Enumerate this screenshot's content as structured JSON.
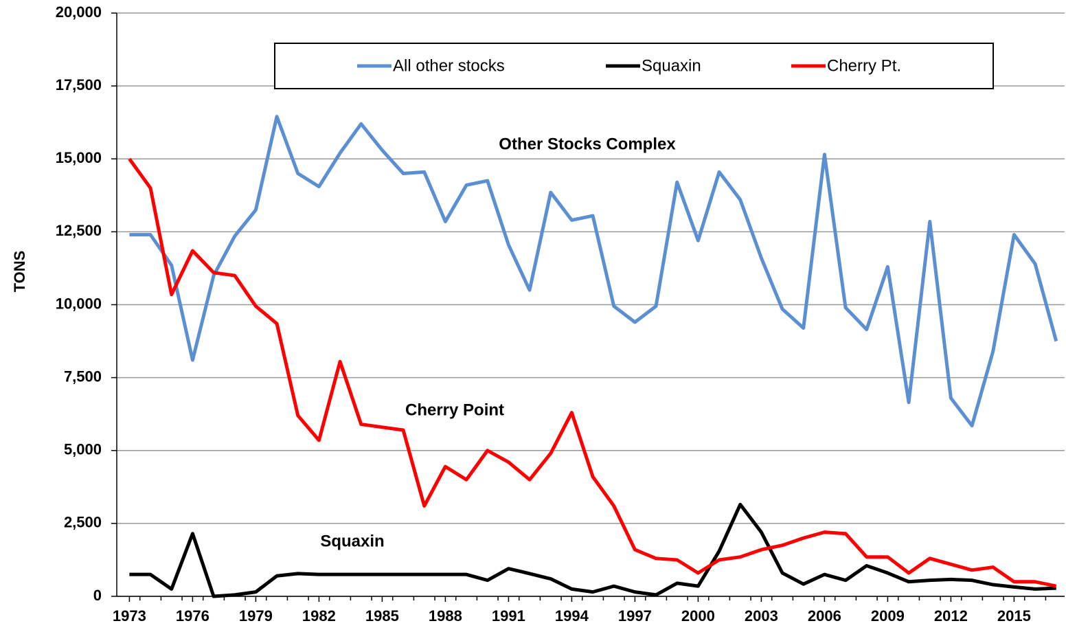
{
  "chart_data": {
    "type": "line",
    "y_label": "TONS",
    "annotations": [
      "Other Stocks Complex",
      "Cherry Point",
      "Squaxin"
    ],
    "x": [
      1973,
      1974,
      1975,
      1976,
      1977,
      1978,
      1979,
      1980,
      1981,
      1982,
      1983,
      1984,
      1985,
      1986,
      1987,
      1988,
      1989,
      1990,
      1991,
      1992,
      1993,
      1994,
      1995,
      1996,
      1997,
      1998,
      1999,
      2000,
      2001,
      2002,
      2003,
      2004,
      2005,
      2006,
      2007,
      2008,
      2009,
      2010,
      2011,
      2012,
      2013,
      2014,
      2015,
      2016,
      2017
    ],
    "series": [
      {
        "name": "All other stocks",
        "color": "#5b8fd4",
        "values": [
          12400,
          12400,
          11350,
          8100,
          11000,
          12350,
          13250,
          16450,
          14500,
          14050,
          15200,
          16200,
          15300,
          14500,
          14550,
          12850,
          14100,
          14250,
          12050,
          10500,
          13850,
          12900,
          13050,
          9950,
          9400,
          9950,
          14200,
          12200,
          14550,
          13600,
          11600,
          9850,
          9200,
          15150,
          9900,
          9150,
          11300,
          6650,
          12850,
          6800,
          5850,
          8400,
          12400,
          11400,
          8750
        ]
      },
      {
        "name": "Squaxin",
        "color": "#000000",
        "values": [
          750,
          750,
          250,
          2150,
          0,
          50,
          150,
          700,
          780,
          750,
          750,
          750,
          750,
          750,
          750,
          750,
          750,
          550,
          950,
          780,
          600,
          250,
          150,
          350,
          150,
          50,
          450,
          350,
          1550,
          3150,
          2200,
          800,
          420,
          750,
          550,
          1050,
          800,
          500,
          550,
          580,
          550,
          400,
          320,
          250,
          280
        ]
      },
      {
        "name": "Cherry Pt.",
        "color": "#ff0000",
        "values": [
          15000,
          14000,
          10350,
          11850,
          11100,
          11000,
          9950,
          9350,
          6200,
          5350,
          8050,
          5900,
          5800,
          5700,
          3100,
          4450,
          4000,
          5000,
          4600,
          4000,
          4900,
          6300,
          4100,
          3100,
          1600,
          1300,
          1250,
          800,
          1250,
          1350,
          1600,
          1750,
          2000,
          2200,
          2150,
          1350,
          1350,
          800,
          1300,
          1100,
          900,
          1000,
          500,
          500,
          350
        ]
      }
    ],
    "xlim": [
      1972.4,
      2017.4
    ],
    "xticks": [
      1973,
      1976,
      1979,
      1982,
      1985,
      1988,
      1991,
      1994,
      1997,
      2000,
      2003,
      2006,
      2009,
      2012,
      2015
    ],
    "ylim": [
      0,
      20000
    ],
    "yticks": [
      0,
      {
        "value": 2500,
        "label": "2,500"
      },
      {
        "value": 5000,
        "label": "5,000"
      },
      {
        "value": 7500,
        "label": "7,500"
      },
      {
        "value": 10000,
        "label": "10,000"
      },
      {
        "value": 12500,
        "label": "12,500"
      },
      {
        "value": 15000,
        "label": "15,000"
      },
      {
        "value": 17500,
        "label": "17,500"
      },
      {
        "value": 20000,
        "label": "20,000"
      }
    ],
    "grid": true
  }
}
